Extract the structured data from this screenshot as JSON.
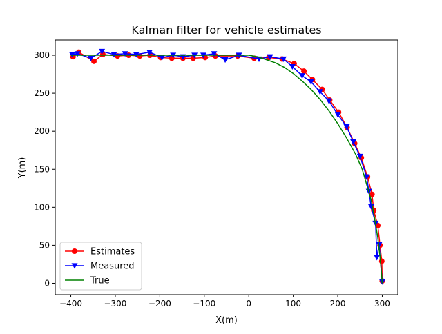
{
  "chart_data": {
    "type": "line",
    "title": "Kalman filter for vehicle estimates",
    "xlabel": "X(m)",
    "ylabel": "Y(m)",
    "xlim": [
      -435,
      335
    ],
    "ylim": [
      -15,
      320
    ],
    "xticks": [
      -400,
      -300,
      -200,
      -100,
      0,
      100,
      200,
      300
    ],
    "yticks": [
      0,
      50,
      100,
      150,
      200,
      250,
      300
    ],
    "grid": false,
    "legend_position": "lower-left",
    "series": [
      {
        "name": "Estimates",
        "color": "#ff0000",
        "marker": "circle",
        "x": [
          -395,
          -382,
          -348,
          -328,
          -295,
          -270,
          -245,
          -222,
          -198,
          -173,
          -148,
          -125,
          -98,
          -75,
          -25,
          12,
          45,
          75,
          102,
          124,
          143,
          165,
          182,
          202,
          221,
          238,
          253,
          267,
          277,
          281,
          290,
          295,
          299,
          300
        ],
        "y": [
          298,
          304,
          292,
          301,
          299,
          300,
          299,
          300,
          297,
          296,
          296,
          296,
          297,
          299,
          299,
          296,
          297,
          295,
          289,
          279,
          268,
          255,
          241,
          225,
          205,
          184,
          165,
          140,
          117,
          96,
          76,
          50,
          29,
          3
        ]
      },
      {
        "name": "Measured",
        "color": "#0000ff",
        "marker": "triangle-down",
        "x": [
          -397,
          -385,
          -355,
          -330,
          -303,
          -278,
          -253,
          -223,
          -195,
          -170,
          -148,
          -122,
          -102,
          -78,
          -53,
          -22,
          23,
          48,
          78,
          98,
          120,
          140,
          160,
          180,
          200,
          220,
          235,
          250,
          265,
          270,
          275,
          285,
          288,
          293,
          300
        ],
        "y": [
          301,
          302,
          296,
          305,
          301,
          302,
          301,
          304,
          297,
          300,
          298,
          300,
          300,
          302,
          294,
          300,
          295,
          298,
          295,
          285,
          273,
          265,
          252,
          240,
          222,
          206,
          186,
          167,
          140,
          121,
          101,
          79,
          34,
          51,
          2
        ]
      },
      {
        "name": "True",
        "color": "#008000",
        "marker": "none",
        "x": [
          -400,
          -300,
          -200,
          -100,
          0,
          20,
          40,
          60,
          80,
          100,
          120,
          140,
          160,
          180,
          200,
          220,
          240,
          255,
          265,
          275,
          283,
          290,
          295,
          298,
          300
        ],
        "y": [
          300,
          300,
          300,
          300,
          300,
          298,
          294,
          290,
          284,
          276,
          266,
          255,
          242,
          227,
          210,
          191,
          170,
          150,
          130,
          110,
          85,
          60,
          35,
          15,
          0
        ]
      }
    ]
  }
}
